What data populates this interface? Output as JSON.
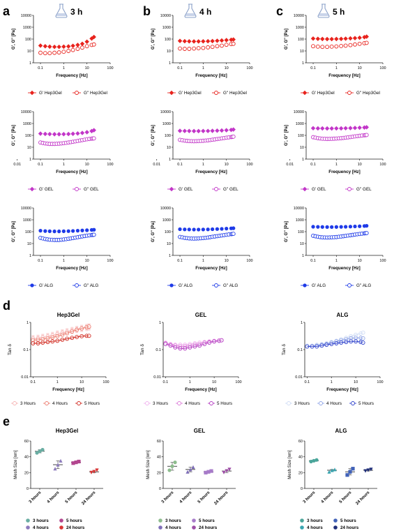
{
  "colors": {
    "hep3gel": "#e8231d",
    "gel": "#c236c8",
    "alg": "#1f3be8",
    "h3_light": "#f6b3b3",
    "h4_mid": "#ec7b6e",
    "h5_dark": "#d1281e",
    "gel_light": "#f1b3ef",
    "gel_mid": "#dc7ad8",
    "gel_dark": "#b339c0",
    "alg_light": "#cfdcf5",
    "alg_mid": "#8fa4e6",
    "alg_dark": "#2b3fcb",
    "mesh_h3": "#6aaea3",
    "mesh_h4": "#8d7bbd",
    "mesh_h5": "#b3468f",
    "mesh_h24": "#d93636",
    "mesh_h3_gel": "#8ebd8e",
    "mesh_h4_gel": "#7f6fb8",
    "mesh_h5_gel": "#a77bc9",
    "mesh_h24_gel": "#9d4ea6",
    "mesh_h3_alg": "#4aa59a",
    "mesh_h4_alg": "#38a5b0",
    "mesh_h5_alg": "#4162b8",
    "mesh_h24_alg": "#1f2e7a"
  },
  "panel_letters": [
    "a",
    "b",
    "c",
    "d",
    "e"
  ],
  "time_labels": [
    "3 h",
    "4 h",
    "5 h"
  ],
  "flask_icon": "flask-icon",
  "rheology": {
    "ylabel": "G', G'' [Pa]",
    "xlabel": "Frequency [Hz]",
    "xticks": [
      "0.1",
      "1",
      "10",
      "100"
    ],
    "xticks_full": [
      "0.01",
      "0.1",
      "1",
      "10",
      "100"
    ],
    "yticks": [
      "10000",
      "1000",
      "100",
      "10",
      "1"
    ],
    "legends": {
      "hep3gel": [
        "G' Hep3Gel",
        "G'' Hep3Gel"
      ],
      "gel": [
        "G' GEL",
        "G'' GEL"
      ],
      "alg": [
        "G' ALG",
        "G'' ALG"
      ]
    }
  },
  "chart_data": [
    {
      "type": "scatter",
      "panel": "a",
      "material": "Hep3Gel",
      "time": "3 h",
      "xlabel": "Frequency [Hz]",
      "ylabel": "G', G'' [Pa]",
      "xscale": "log",
      "yscale": "log",
      "xlim": [
        0.05,
        100
      ],
      "ylim": [
        1,
        10000
      ],
      "x": [
        0.1,
        0.16,
        0.25,
        0.4,
        0.63,
        1,
        1.6,
        2.5,
        4,
        6.3,
        10,
        16,
        20
      ],
      "series": [
        {
          "name": "G' Hep3Gel",
          "values": [
            28,
            25,
            23,
            22,
            22,
            23,
            24,
            27,
            32,
            40,
            60,
            110,
            150
          ]
        },
        {
          "name": "G'' Hep3Gel",
          "values": [
            7,
            6.5,
            6.5,
            7,
            7.5,
            8.5,
            10,
            12,
            15,
            19,
            25,
            32,
            35
          ]
        }
      ]
    },
    {
      "type": "scatter",
      "panel": "b",
      "material": "Hep3Gel",
      "time": "4 h",
      "xlabel": "Frequency [Hz]",
      "ylabel": "G', G'' [Pa]",
      "xscale": "log",
      "yscale": "log",
      "xlim": [
        0.05,
        100
      ],
      "ylim": [
        1,
        10000
      ],
      "x": [
        0.1,
        0.16,
        0.25,
        0.4,
        0.63,
        1,
        1.6,
        2.5,
        4,
        6.3,
        10,
        16,
        20
      ],
      "series": [
        {
          "name": "G' Hep3Gel",
          "values": [
            70,
            66,
            64,
            63,
            63,
            64,
            66,
            68,
            72,
            76,
            82,
            88,
            92
          ]
        },
        {
          "name": "G'' Hep3Gel",
          "values": [
            16,
            15,
            15,
            16,
            17,
            18,
            20,
            22,
            25,
            28,
            33,
            38,
            40
          ]
        }
      ]
    },
    {
      "type": "scatter",
      "panel": "c",
      "material": "Hep3Gel",
      "time": "5 h",
      "xlabel": "Frequency [Hz]",
      "ylabel": "G', G'' [Pa]",
      "xscale": "log",
      "yscale": "log",
      "xlim": [
        0.05,
        100
      ],
      "ylim": [
        1,
        10000
      ],
      "x": [
        0.1,
        0.16,
        0.25,
        0.4,
        0.63,
        1,
        1.6,
        2.5,
        4,
        6.3,
        10,
        16,
        20
      ],
      "series": [
        {
          "name": "G' Hep3Gel",
          "values": [
            110,
            105,
            102,
            100,
            100,
            102,
            104,
            108,
            114,
            120,
            130,
            145,
            160
          ]
        },
        {
          "name": "G'' Hep3Gel",
          "values": [
            25,
            23,
            22,
            22,
            23,
            24,
            26,
            28,
            31,
            35,
            40,
            45,
            48
          ]
        }
      ]
    },
    {
      "type": "scatter",
      "panel": "a",
      "material": "GEL",
      "time": "3 h",
      "xlabel": "Frequency [Hz]",
      "ylabel": "G', G'' [Pa]",
      "xscale": "log",
      "yscale": "log",
      "xlim": [
        0.05,
        100
      ],
      "ylim": [
        1,
        10000
      ],
      "x": [
        0.1,
        0.16,
        0.25,
        0.4,
        0.63,
        1,
        1.6,
        2.5,
        4,
        6.3,
        10,
        16,
        20
      ],
      "series": [
        {
          "name": "G' GEL",
          "values": [
            140,
            132,
            128,
            125,
            125,
            127,
            130,
            136,
            145,
            160,
            185,
            230,
            270
          ]
        },
        {
          "name": "G'' GEL",
          "values": [
            25,
            21,
            19,
            19,
            20,
            22,
            25,
            29,
            34,
            40,
            47,
            53,
            56
          ]
        }
      ]
    },
    {
      "type": "scatter",
      "panel": "b",
      "material": "GEL",
      "time": "4 h",
      "xlabel": "Frequency [Hz]",
      "ylabel": "G', G'' [Pa]",
      "xscale": "log",
      "yscale": "log",
      "xlim": [
        0.05,
        100
      ],
      "ylim": [
        1,
        10000
      ],
      "x": [
        0.1,
        0.16,
        0.25,
        0.4,
        0.63,
        1,
        1.6,
        2.5,
        4,
        6.3,
        10,
        16,
        20
      ],
      "series": [
        {
          "name": "G' GEL",
          "values": [
            240,
            235,
            232,
            230,
            230,
            232,
            235,
            240,
            248,
            258,
            270,
            290,
            310
          ]
        },
        {
          "name": "G'' GEL",
          "values": [
            42,
            36,
            33,
            32,
            33,
            35,
            38,
            43,
            49,
            56,
            64,
            72,
            78
          ]
        }
      ]
    },
    {
      "type": "scatter",
      "panel": "c",
      "material": "GEL",
      "time": "5 h",
      "xlabel": "Frequency [Hz]",
      "ylabel": "G', G'' [Pa]",
      "xscale": "log",
      "yscale": "log",
      "xlim": [
        0.05,
        100
      ],
      "ylim": [
        1,
        10000
      ],
      "x": [
        0.1,
        0.16,
        0.25,
        0.4,
        0.63,
        1,
        1.6,
        2.5,
        4,
        6.3,
        10,
        16,
        20
      ],
      "series": [
        {
          "name": "G' GEL",
          "values": [
            400,
            390,
            385,
            382,
            382,
            385,
            390,
            398,
            410,
            425,
            440,
            460,
            480
          ]
        },
        {
          "name": "G'' GEL",
          "values": [
            70,
            58,
            52,
            50,
            51,
            54,
            58,
            64,
            72,
            82,
            92,
            102,
            108
          ]
        }
      ]
    },
    {
      "type": "scatter",
      "panel": "a",
      "material": "ALG",
      "time": "3 h",
      "xlabel": "Frequency [Hz]",
      "ylabel": "G', G'' [Pa]",
      "xscale": "log",
      "yscale": "log",
      "xlim": [
        0.05,
        100
      ],
      "ylim": [
        1,
        10000
      ],
      "x": [
        0.1,
        0.16,
        0.25,
        0.4,
        0.63,
        1,
        1.6,
        2.5,
        4,
        6.3,
        10,
        16,
        20
      ],
      "series": [
        {
          "name": "G' ALG",
          "values": [
            120,
            112,
            108,
            106,
            106,
            108,
            111,
            115,
            120,
            126,
            132,
            140,
            145
          ]
        },
        {
          "name": "G'' ALG",
          "values": [
            30,
            24,
            21,
            20,
            20,
            22,
            25,
            29,
            34,
            40,
            46,
            52,
            55
          ]
        }
      ]
    },
    {
      "type": "scatter",
      "panel": "b",
      "material": "ALG",
      "time": "4 h",
      "xlabel": "Frequency [Hz]",
      "ylabel": "G', G'' [Pa]",
      "xscale": "log",
      "yscale": "log",
      "xlim": [
        0.05,
        100
      ],
      "ylim": [
        1,
        10000
      ],
      "x": [
        0.1,
        0.16,
        0.25,
        0.4,
        0.63,
        1,
        1.6,
        2.5,
        4,
        6.3,
        10,
        16,
        20
      ],
      "series": [
        {
          "name": "G' ALG",
          "values": [
            160,
            155,
            152,
            150,
            150,
            152,
            155,
            160,
            166,
            172,
            180,
            190,
            195
          ]
        },
        {
          "name": "G'' ALG",
          "values": [
            36,
            30,
            27,
            26,
            27,
            29,
            32,
            37,
            42,
            48,
            55,
            62,
            66
          ]
        }
      ]
    },
    {
      "type": "scatter",
      "panel": "c",
      "material": "ALG",
      "time": "5 h",
      "xlabel": "Frequency [Hz]",
      "ylabel": "G', G'' [Pa]",
      "xscale": "log",
      "yscale": "log",
      "xlim": [
        0.05,
        100
      ],
      "ylim": [
        1,
        10000
      ],
      "x": [
        0.1,
        0.16,
        0.25,
        0.4,
        0.63,
        1,
        1.6,
        2.5,
        4,
        6.3,
        10,
        16,
        20
      ],
      "series": [
        {
          "name": "G' ALG",
          "values": [
            260,
            252,
            248,
            246,
            246,
            248,
            252,
            258,
            266,
            275,
            285,
            300,
            310
          ]
        },
        {
          "name": "G'' ALG",
          "values": [
            45,
            37,
            33,
            32,
            33,
            35,
            39,
            44,
            50,
            57,
            64,
            72,
            76
          ]
        }
      ]
    },
    {
      "type": "line",
      "panel": "d",
      "title": "Hep3Gel",
      "xlabel": "Frequency [Hz]",
      "ylabel": "Tan δ",
      "xscale": "log",
      "yscale": "log",
      "xlim": [
        0.08,
        100
      ],
      "ylim": [
        0.01,
        1
      ],
      "xticks": [
        "0.1",
        "1",
        "10",
        "100"
      ],
      "yticks": [
        "1",
        "0.1",
        "0.01"
      ],
      "x": [
        0.1,
        0.16,
        0.25,
        0.4,
        0.63,
        1,
        1.6,
        2.5,
        4,
        6.3,
        10,
        16,
        20
      ],
      "series": [
        {
          "name": "3 Hours",
          "values": [
            0.25,
            0.26,
            0.28,
            0.3,
            0.33,
            0.37,
            0.41,
            0.45,
            0.5,
            0.55,
            0.6,
            0.65,
            0.68
          ]
        },
        {
          "name": "4 Hours",
          "values": [
            0.22,
            0.23,
            0.24,
            0.26,
            0.28,
            0.31,
            0.35,
            0.4,
            0.46,
            0.53,
            0.6,
            0.67,
            0.7
          ]
        },
        {
          "name": "5 Hours",
          "values": [
            0.17,
            0.17,
            0.18,
            0.19,
            0.2,
            0.21,
            0.23,
            0.25,
            0.27,
            0.29,
            0.31,
            0.32,
            0.32
          ]
        }
      ],
      "legend": [
        "3 Hours",
        "4 Hours",
        "5 Hours"
      ]
    },
    {
      "type": "line",
      "panel": "d",
      "title": "GEL",
      "xlabel": "Frequency [Hz]",
      "ylabel": "Tan δ",
      "xscale": "log",
      "yscale": "log",
      "xlim": [
        0.08,
        100
      ],
      "ylim": [
        0.01,
        1
      ],
      "xticks": [
        "0.1",
        "1",
        "10",
        "100"
      ],
      "yticks": [
        "1",
        "0.1",
        "0.01"
      ],
      "x": [
        0.1,
        0.16,
        0.25,
        0.4,
        0.63,
        1,
        1.6,
        2.5,
        4,
        6.3,
        10,
        16,
        20
      ],
      "series": [
        {
          "name": "3 Hours",
          "values": [
            0.18,
            0.16,
            0.15,
            0.15,
            0.15,
            0.16,
            0.17,
            0.18,
            0.19,
            0.2,
            0.21,
            0.22,
            0.22
          ]
        },
        {
          "name": "4 Hours",
          "values": [
            0.17,
            0.15,
            0.14,
            0.13,
            0.13,
            0.14,
            0.15,
            0.16,
            0.18,
            0.19,
            0.2,
            0.21,
            0.22
          ]
        },
        {
          "name": "5 Hours",
          "values": [
            0.16,
            0.14,
            0.12,
            0.11,
            0.11,
            0.12,
            0.13,
            0.14,
            0.16,
            0.18,
            0.2,
            0.21,
            0.22
          ]
        }
      ],
      "legend": [
        "3 Hours",
        "4 Hours",
        "5 Hours"
      ]
    },
    {
      "type": "line",
      "panel": "d",
      "title": "ALG",
      "xlabel": "Frequency [Hz]",
      "ylabel": "Tan δ",
      "xscale": "log",
      "yscale": "log",
      "xlim": [
        0.08,
        100
      ],
      "ylim": [
        0.01,
        1
      ],
      "xticks": [
        "0.1",
        "1",
        "10",
        "100"
      ],
      "yticks": [
        "1",
        "0.1",
        "0.01"
      ],
      "x": [
        0.1,
        0.16,
        0.25,
        0.4,
        0.63,
        1,
        1.6,
        2.5,
        4,
        6.3,
        10,
        16,
        20
      ],
      "series": [
        {
          "name": "3 Hours",
          "values": [
            0.14,
            0.14,
            0.15,
            0.16,
            0.17,
            0.19,
            0.21,
            0.24,
            0.27,
            0.31,
            0.35,
            0.39,
            0.42
          ]
        },
        {
          "name": "4 Hours",
          "values": [
            0.13,
            0.13,
            0.14,
            0.15,
            0.16,
            0.18,
            0.2,
            0.22,
            0.24,
            0.26,
            0.27,
            0.27,
            0.26
          ]
        },
        {
          "name": "5 Hours",
          "values": [
            0.13,
            0.13,
            0.13,
            0.14,
            0.15,
            0.16,
            0.17,
            0.18,
            0.19,
            0.2,
            0.2,
            0.19,
            0.18
          ]
        }
      ],
      "legend": [
        "3 Hours",
        "4 Hours",
        "5 Hours"
      ]
    },
    {
      "type": "scatter",
      "panel": "e",
      "title": "Hep3Gel",
      "ylabel": "Mesh Size [nm]",
      "ylim": [
        0,
        60
      ],
      "yticks": [
        "60",
        "40",
        "20",
        "0"
      ],
      "categories": [
        "3 hours",
        "4 hours",
        "5 hours",
        "24 hours"
      ],
      "means": [
        47,
        30,
        33,
        21
      ],
      "points": [
        [
          45,
          47,
          49
        ],
        [
          25,
          30,
          35
        ],
        [
          32,
          33,
          34
        ],
        [
          20,
          21,
          23
        ]
      ],
      "legend": [
        "3 hours",
        "5 hours",
        "4 hours",
        "24 hours"
      ]
    },
    {
      "type": "scatter",
      "panel": "e",
      "title": "GEL",
      "ylabel": "Mesh Size [nm]",
      "ylim": [
        0,
        60
      ],
      "yticks": [
        "60",
        "40",
        "20",
        "0"
      ],
      "categories": [
        "3 hours",
        "4 hours",
        "5 hours",
        "24 hours"
      ],
      "means": [
        28,
        24,
        21,
        22
      ],
      "points": [
        [
          23,
          28,
          33
        ],
        [
          21,
          24,
          27
        ],
        [
          20,
          21,
          22
        ],
        [
          20,
          22,
          24
        ]
      ],
      "legend": [
        "3 hours",
        "5 hours",
        "4 hours",
        "24 hours"
      ]
    },
    {
      "type": "scatter",
      "panel": "e",
      "title": "ALG",
      "ylabel": "Mesh Size [nm]",
      "ylim": [
        0,
        60
      ],
      "yticks": [
        "60",
        "40",
        "20",
        "0"
      ],
      "categories": [
        "3 hours",
        "4 hours",
        "5 hours",
        "24 hours"
      ],
      "means": [
        35,
        23,
        21,
        23
      ],
      "points": [
        [
          34,
          35,
          36
        ],
        [
          21,
          23,
          24
        ],
        [
          17,
          21,
          25
        ],
        [
          22,
          23,
          24
        ]
      ],
      "legend": [
        "3 hours",
        "5 hours",
        "4 hours",
        "24 hours"
      ]
    }
  ]
}
